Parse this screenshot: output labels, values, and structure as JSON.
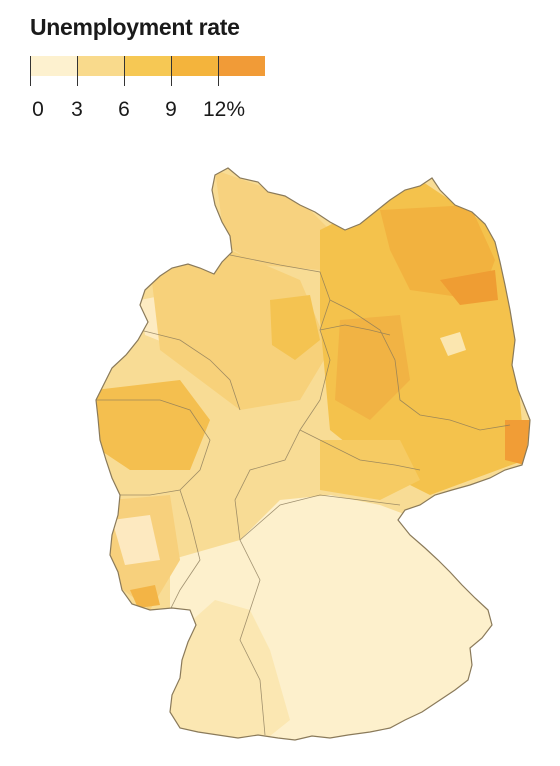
{
  "legend": {
    "title": "Unemployment rate",
    "ticks": [
      "0",
      "3",
      "6",
      "9",
      "12%"
    ],
    "colors": [
      "#fdf1cf",
      "#f9da8c",
      "#f6c854",
      "#f4b43c",
      "#f19b37"
    ]
  }
}
